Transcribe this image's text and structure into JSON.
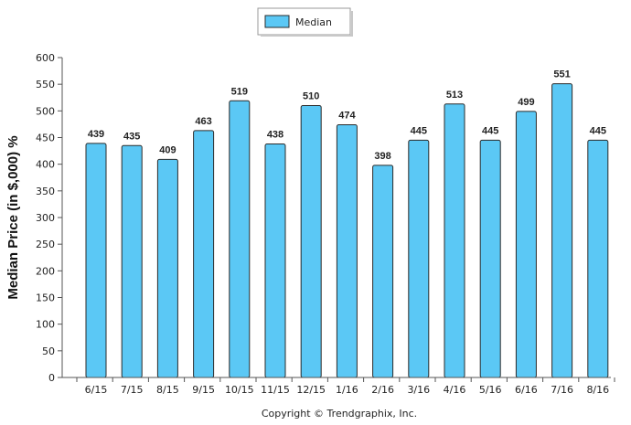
{
  "chart_data": {
    "type": "bar",
    "categories": [
      "6/15",
      "7/15",
      "8/15",
      "9/15",
      "10/15",
      "11/15",
      "12/15",
      "1/16",
      "2/16",
      "3/16",
      "4/16",
      "5/16",
      "6/16",
      "7/16",
      "8/16"
    ],
    "series": [
      {
        "name": "Median",
        "values": [
          439,
          435,
          409,
          463,
          519,
          438,
          510,
          474,
          398,
          445,
          513,
          445,
          499,
          551,
          445
        ],
        "color": "#5bc8f5"
      }
    ],
    "ylabel": "Median Price (in $,000) %",
    "ylim": [
      0,
      600
    ],
    "yticks": [
      0,
      50,
      100,
      150,
      200,
      250,
      300,
      350,
      400,
      450,
      500,
      550,
      600
    ],
    "grid": false,
    "legend_position": "top-center",
    "data_labels": true
  },
  "legend": {
    "label": "Median"
  },
  "footer": {
    "copyright": "Copyright © Trendgraphix, Inc."
  },
  "colors": {
    "bar_fill": "#5bc8f5",
    "bar_stroke": "#2b2b2b",
    "axis": "#555555"
  }
}
